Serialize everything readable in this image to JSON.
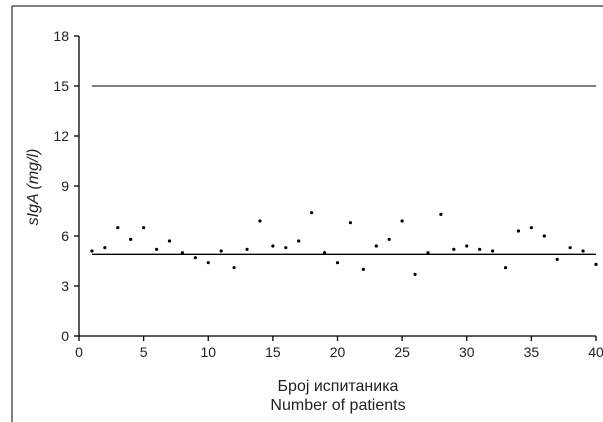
{
  "chart_data": {
    "type": "scatter",
    "xlabel_lines": [
      "Број испитаника",
      "Number of patients"
    ],
    "ylabel": "sIgA (mg/l)",
    "xlim": [
      0,
      40
    ],
    "ylim": [
      0,
      18
    ],
    "x_ticks": [
      "0",
      "5",
      "10",
      "15",
      "20",
      "25",
      "30",
      "35",
      "40"
    ],
    "y_ticks": [
      "0",
      "3",
      "6",
      "9",
      "12",
      "15",
      "18"
    ],
    "grid": false,
    "legend": "none",
    "colors": {
      "points": "#000000",
      "lines": "#000000",
      "axes": "#000000"
    },
    "reference_lines": [
      {
        "y": 15,
        "x_from": 1,
        "x_to": 40
      },
      {
        "y": 4.9,
        "x_from": 1,
        "x_to": 40
      }
    ],
    "series": [
      {
        "x": [
          1,
          2,
          3,
          4,
          5,
          6,
          7,
          8,
          9,
          10,
          11,
          12,
          13,
          14,
          15,
          16,
          17,
          18,
          19,
          20,
          21,
          22,
          23,
          24,
          25,
          26,
          27,
          28,
          29,
          30,
          31,
          32,
          33,
          34,
          35,
          36,
          37,
          38,
          39,
          40
        ],
        "y": [
          5.1,
          5.3,
          6.5,
          5.8,
          6.5,
          5.2,
          5.7,
          5.0,
          4.7,
          4.4,
          5.1,
          4.1,
          5.2,
          6.9,
          5.4,
          5.3,
          5.7,
          7.4,
          5.0,
          4.4,
          6.8,
          4.0,
          5.4,
          5.8,
          6.9,
          3.7,
          5.0,
          7.3,
          5.2,
          5.4,
          5.2,
          5.1,
          4.1,
          6.3,
          6.5,
          6.0,
          4.6,
          5.3,
          5.1,
          4.3
        ]
      }
    ]
  }
}
